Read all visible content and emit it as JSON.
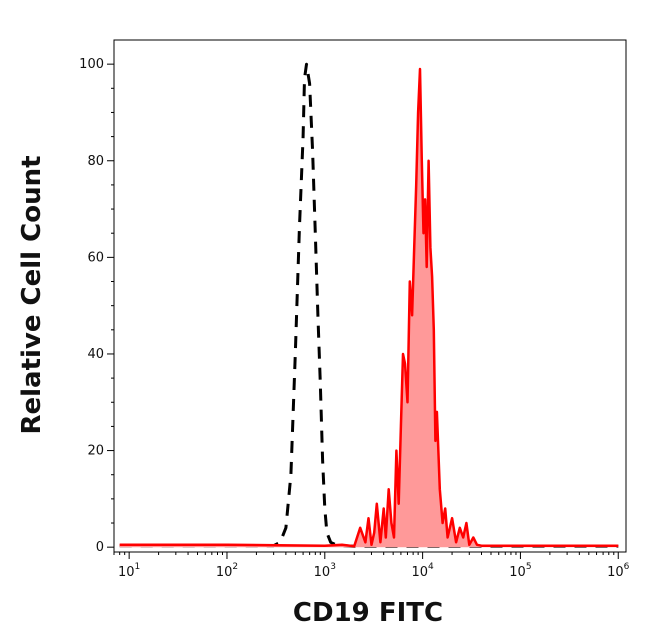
{
  "chart_data": {
    "type": "area",
    "xlabel": "CD19 FITC",
    "ylabel": "Relative Cell Count",
    "x_scale": "log",
    "xlim": [
      7,
      1200000
    ],
    "ylim": [
      -1,
      105
    ],
    "x_ticks": [
      {
        "base": "10",
        "exp": "1",
        "value": 10
      },
      {
        "base": "10",
        "exp": "2",
        "value": 100
      },
      {
        "base": "10",
        "exp": "3",
        "value": 1000
      },
      {
        "base": "10",
        "exp": "4",
        "value": 10000
      },
      {
        "base": "10",
        "exp": "5",
        "value": 100000
      },
      {
        "base": "10",
        "exp": "6",
        "value": 1000000
      }
    ],
    "y_ticks": [
      0,
      20,
      40,
      60,
      80,
      100
    ],
    "grid": false,
    "legend": "none",
    "series": [
      {
        "style": "dashed",
        "color": "#000000",
        "fill": "none",
        "x": [
          8,
          100,
          300,
          350,
          400,
          450,
          500,
          550,
          600,
          620,
          650,
          700,
          750,
          800,
          850,
          900,
          950,
          1000,
          1050,
          1150,
          1300,
          1500,
          2000,
          10000,
          100000,
          1000000
        ],
        "y": [
          0.3,
          0.3,
          0.3,
          1,
          4,
          15,
          40,
          66,
          85,
          97,
          100,
          96,
          82,
          65,
          48,
          34,
          18,
          8,
          3,
          1,
          0.5,
          0.3,
          0.2,
          0.2,
          0.2,
          0.2
        ]
      },
      {
        "style": "solid",
        "color": "#ff0000",
        "fill": "#ff9999",
        "x": [
          8,
          100,
          1000,
          1500,
          2000,
          2300,
          2600,
          2800,
          3000,
          3200,
          3400,
          3700,
          4000,
          4200,
          4500,
          4800,
          5100,
          5400,
          5700,
          6000,
          6300,
          6600,
          7000,
          7400,
          7800,
          8200,
          8600,
          9000,
          9400,
          9800,
          10200,
          10600,
          11000,
          11500,
          12000,
          12500,
          13000,
          13500,
          14000,
          15000,
          16000,
          17000,
          18000,
          20000,
          22000,
          24000,
          26000,
          28000,
          30000,
          33000,
          36000,
          40000,
          50000,
          100000,
          1000000
        ],
        "y": [
          0.5,
          0.5,
          0.3,
          0.5,
          0.2,
          4,
          1,
          6,
          0.5,
          3,
          9,
          1,
          8,
          2,
          12,
          5,
          2,
          20,
          9,
          25,
          40,
          38,
          30,
          55,
          48,
          62,
          75,
          90,
          99,
          80,
          65,
          72,
          58,
          80,
          62,
          56,
          45,
          22,
          28,
          12,
          5,
          8,
          2,
          6,
          1,
          4,
          2,
          5,
          0.5,
          2,
          0.5,
          0.3,
          0.3,
          0.3,
          0.3
        ]
      }
    ]
  }
}
